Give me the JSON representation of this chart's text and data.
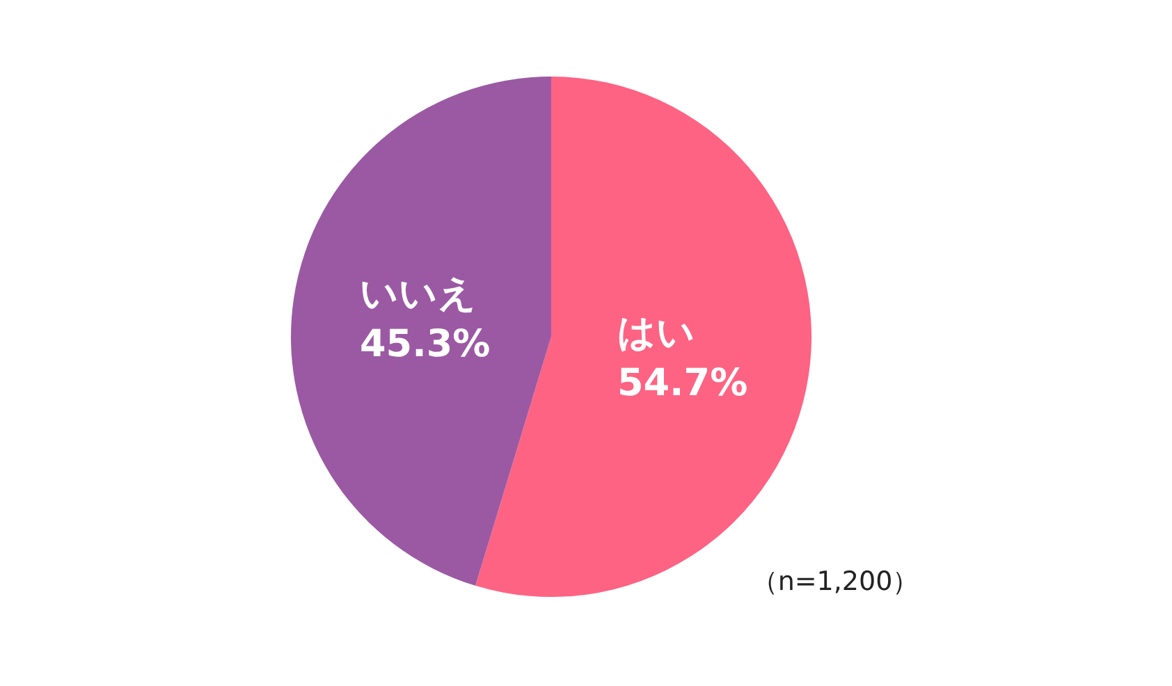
{
  "chart_data": {
    "type": "pie",
    "categories": [
      "はい",
      "いいえ"
    ],
    "values": [
      54.7,
      45.3
    ],
    "value_labels": [
      "54.7%",
      "45.3%"
    ],
    "colors": [
      "#fe6383",
      "#9b59a4"
    ],
    "annotations": [
      "（n=1,200）"
    ]
  }
}
